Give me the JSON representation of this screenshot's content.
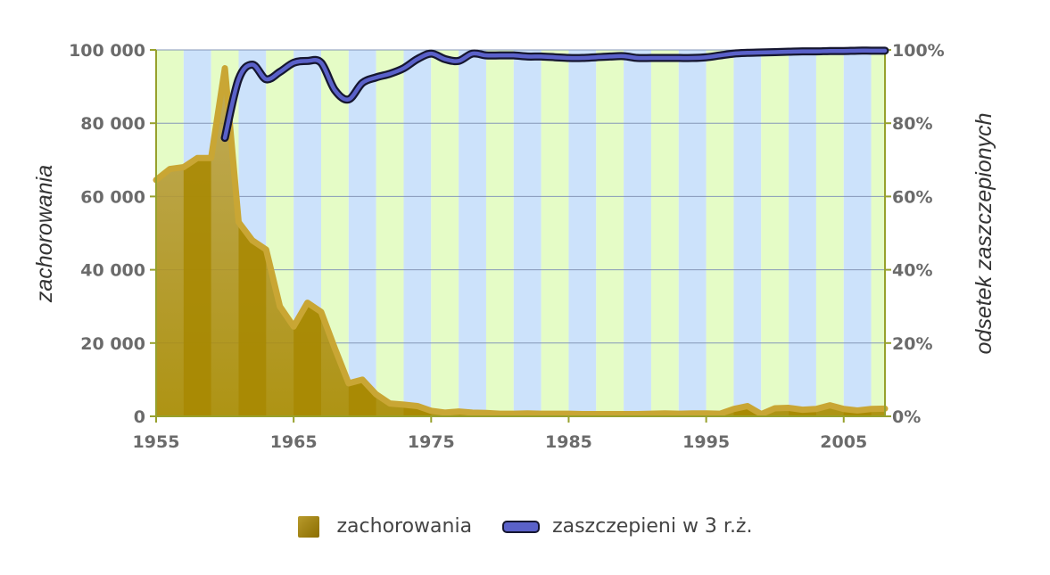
{
  "chart_data": {
    "type": "area",
    "x_start": 1955,
    "x_end": 2008,
    "x_ticks": [
      "1955",
      "1965",
      "1975",
      "1985",
      "1995",
      "2005"
    ],
    "y_left_ticks": [
      "0",
      "20 000",
      "40 000",
      "60 000",
      "80 000",
      "100 000"
    ],
    "y_right_ticks": [
      "0%",
      "20%",
      "40%",
      "60%",
      "80%",
      "100%"
    ],
    "ylim_left": [
      0,
      100000
    ],
    "ylim_right": [
      0,
      100
    ],
    "ylabel_left": "zachorowania",
    "ylabel_right": "odsetek zaszczepionych",
    "grid": true,
    "legend_position": "bottom",
    "series": [
      {
        "name": "zachorowania",
        "kind": "area",
        "axis": "left",
        "color": "#a88800",
        "x": [
          1955,
          1956,
          1957,
          1958,
          1959,
          1960,
          1961,
          1962,
          1963,
          1964,
          1965,
          1966,
          1967,
          1968,
          1969,
          1970,
          1971,
          1972,
          1973,
          1974,
          1975,
          1976,
          1977,
          1978,
          1979,
          1980,
          1981,
          1982,
          1983,
          1984,
          1985,
          1986,
          1987,
          1988,
          1989,
          1990,
          1991,
          1992,
          1993,
          1994,
          1995,
          1996,
          1997,
          1998,
          1999,
          2000,
          2001,
          2002,
          2003,
          2004,
          2005,
          2006,
          2007,
          2008
        ],
        "values": [
          64500,
          67500,
          68000,
          70500,
          70500,
          95000,
          53000,
          48000,
          45500,
          30000,
          24500,
          31000,
          28500,
          18500,
          9000,
          10000,
          6000,
          3500,
          3200,
          2800,
          1500,
          1000,
          1300,
          1000,
          900,
          700,
          700,
          800,
          700,
          700,
          700,
          600,
          600,
          600,
          600,
          600,
          700,
          800,
          700,
          800,
          800,
          700,
          2000,
          2800,
          600,
          2200,
          2300,
          1800,
          2000,
          3000,
          2000,
          1600,
          2000,
          2100
        ]
      },
      {
        "name": "zaszczepieni w 3 r.ż.",
        "kind": "line",
        "axis": "right",
        "color": "#5a61c9",
        "x": [
          1960,
          1961,
          1962,
          1963,
          1964,
          1965,
          1966,
          1967,
          1968,
          1969,
          1970,
          1971,
          1972,
          1973,
          1974,
          1975,
          1976,
          1977,
          1978,
          1979,
          1980,
          1981,
          1982,
          1983,
          1984,
          1985,
          1986,
          1987,
          1988,
          1989,
          1990,
          1991,
          1992,
          1993,
          1994,
          1995,
          1996,
          1997,
          1998,
          1999,
          2000,
          2001,
          2002,
          2003,
          2004,
          2005,
          2006,
          2007,
          2008
        ],
        "values": [
          76,
          92,
          96,
          92,
          94,
          96.5,
          97,
          96.5,
          89,
          86.5,
          91,
          92.5,
          93.5,
          95,
          97.5,
          99,
          97.5,
          97,
          99,
          98.5,
          98.5,
          98.5,
          98.2,
          98.2,
          98,
          97.8,
          97.8,
          98,
          98.2,
          98.3,
          97.8,
          97.8,
          97.8,
          97.8,
          97.8,
          98,
          98.5,
          99,
          99.2,
          99.3,
          99.4,
          99.5,
          99.6,
          99.6,
          99.7,
          99.7,
          99.8,
          99.8,
          99.8
        ]
      }
    ]
  },
  "colors": {
    "band_green": "#e5fcc6",
    "band_blue": "#cce2fb",
    "axis_line": "#97a12d",
    "gridline": "#8597b8",
    "area_fill_dark": "#a88800",
    "area_fill_light": "#bca24e",
    "area_outline": "#c9a634",
    "line_color": "#5a61c9",
    "line_outline": "#151630"
  }
}
